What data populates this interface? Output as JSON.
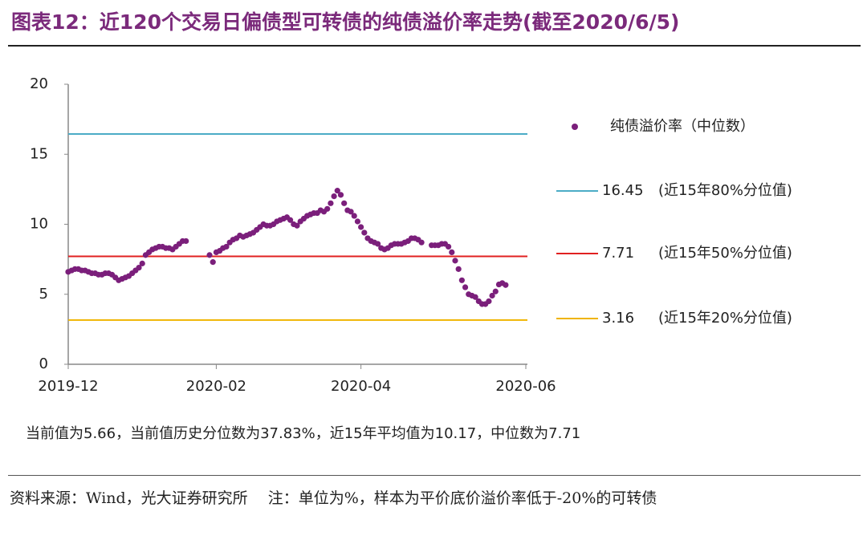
{
  "chart_data": {
    "type": "scatter",
    "title": "图表12：近120个交易日偏债型可转债的纯债溢价率走势(截至2020/6/5)",
    "categories": [
      "2019-12",
      null,
      null,
      null,
      null,
      null,
      null,
      null,
      null,
      null,
      null,
      null,
      null,
      null,
      null,
      null,
      null,
      null,
      null,
      null,
      null,
      null,
      null,
      null,
      null,
      null,
      null,
      null,
      null,
      null,
      null,
      null,
      null,
      null,
      null,
      null,
      null,
      null,
      null,
      null,
      null,
      null,
      null,
      null,
      "2020-02",
      null,
      null,
      null,
      null,
      null,
      null,
      null,
      null,
      null,
      null,
      null,
      null,
      null,
      null,
      null,
      null,
      null,
      null,
      null,
      null,
      null,
      null,
      null,
      null,
      null,
      null,
      null,
      null,
      null,
      null,
      null,
      null,
      null,
      null,
      null,
      null,
      null,
      null,
      null,
      null,
      null,
      null,
      "2020-04",
      null,
      null,
      null,
      null,
      null,
      null,
      null,
      null,
      null,
      null,
      null,
      null,
      null,
      null,
      null,
      null,
      null,
      null,
      null,
      null,
      null,
      null,
      null,
      null,
      null,
      null,
      null,
      null,
      null,
      null,
      null,
      null,
      null,
      null,
      null,
      null,
      null,
      null,
      null,
      null,
      null,
      null,
      null,
      null,
      null,
      null,
      null,
      null,
      "2020-06"
    ],
    "series": [
      {
        "name": "纯债溢价率（中位数）",
        "color": "#7b1f7b",
        "values": [
          6.6,
          6.7,
          6.8,
          6.8,
          6.7,
          6.7,
          6.6,
          6.5,
          6.5,
          6.4,
          6.4,
          6.5,
          6.5,
          6.4,
          6.2,
          6.0,
          6.1,
          6.2,
          6.3,
          6.5,
          6.7,
          6.9,
          7.2,
          7.8,
          8.0,
          8.2,
          8.3,
          8.4,
          8.4,
          8.3,
          8.3,
          8.2,
          8.4,
          8.6,
          8.8,
          8.8,
          null,
          null,
          null,
          null,
          null,
          null,
          7.8,
          7.3,
          8.0,
          8.1,
          8.3,
          8.4,
          8.7,
          8.9,
          9.0,
          9.2,
          9.1,
          9.2,
          9.3,
          9.4,
          9.6,
          9.8,
          10.0,
          9.9,
          9.9,
          10.0,
          10.2,
          10.3,
          10.4,
          10.5,
          10.3,
          10.0,
          9.9,
          10.2,
          10.4,
          10.6,
          10.7,
          10.8,
          10.8,
          11.0,
          10.9,
          11.1,
          11.5,
          12.0,
          12.4,
          12.1,
          11.5,
          11.0,
          10.9,
          10.6,
          10.2,
          9.8,
          9.4,
          9.0,
          8.8,
          8.7,
          8.6,
          8.3,
          8.2,
          8.3,
          8.5,
          8.6,
          8.6,
          8.6,
          8.7,
          8.8,
          9.0,
          9.0,
          8.9,
          8.7,
          null,
          null,
          8.5,
          8.5,
          8.5,
          8.6,
          8.6,
          8.4,
          8.0,
          7.4,
          6.8,
          6.0,
          5.5,
          5.0,
          4.9,
          4.8,
          4.5,
          4.3,
          4.3,
          4.5,
          4.9,
          5.2,
          5.7,
          5.8,
          5.66
        ]
      }
    ],
    "reference_lines": [
      {
        "value": 16.45,
        "label": "(近15年80%分位值)",
        "color": "#4bacc6"
      },
      {
        "value": 7.71,
        "label": "(近15年50%分位值)",
        "color": "#e02020"
      },
      {
        "value": 3.16,
        "label": "(近15年20%分位值)",
        "color": "#f0b400"
      }
    ],
    "ylim": [
      0,
      20
    ],
    "yticks": [
      0,
      5,
      10,
      15,
      20
    ],
    "grid": false
  },
  "note": "当前值为5.66，当前值历史分位数为37.83%，近15年平均值为10.17，中位数为7.71",
  "source": "资料来源：Wind，光大证券研究所　 注：单位为%，样本为平价底价溢价率低于-20%的可转债"
}
